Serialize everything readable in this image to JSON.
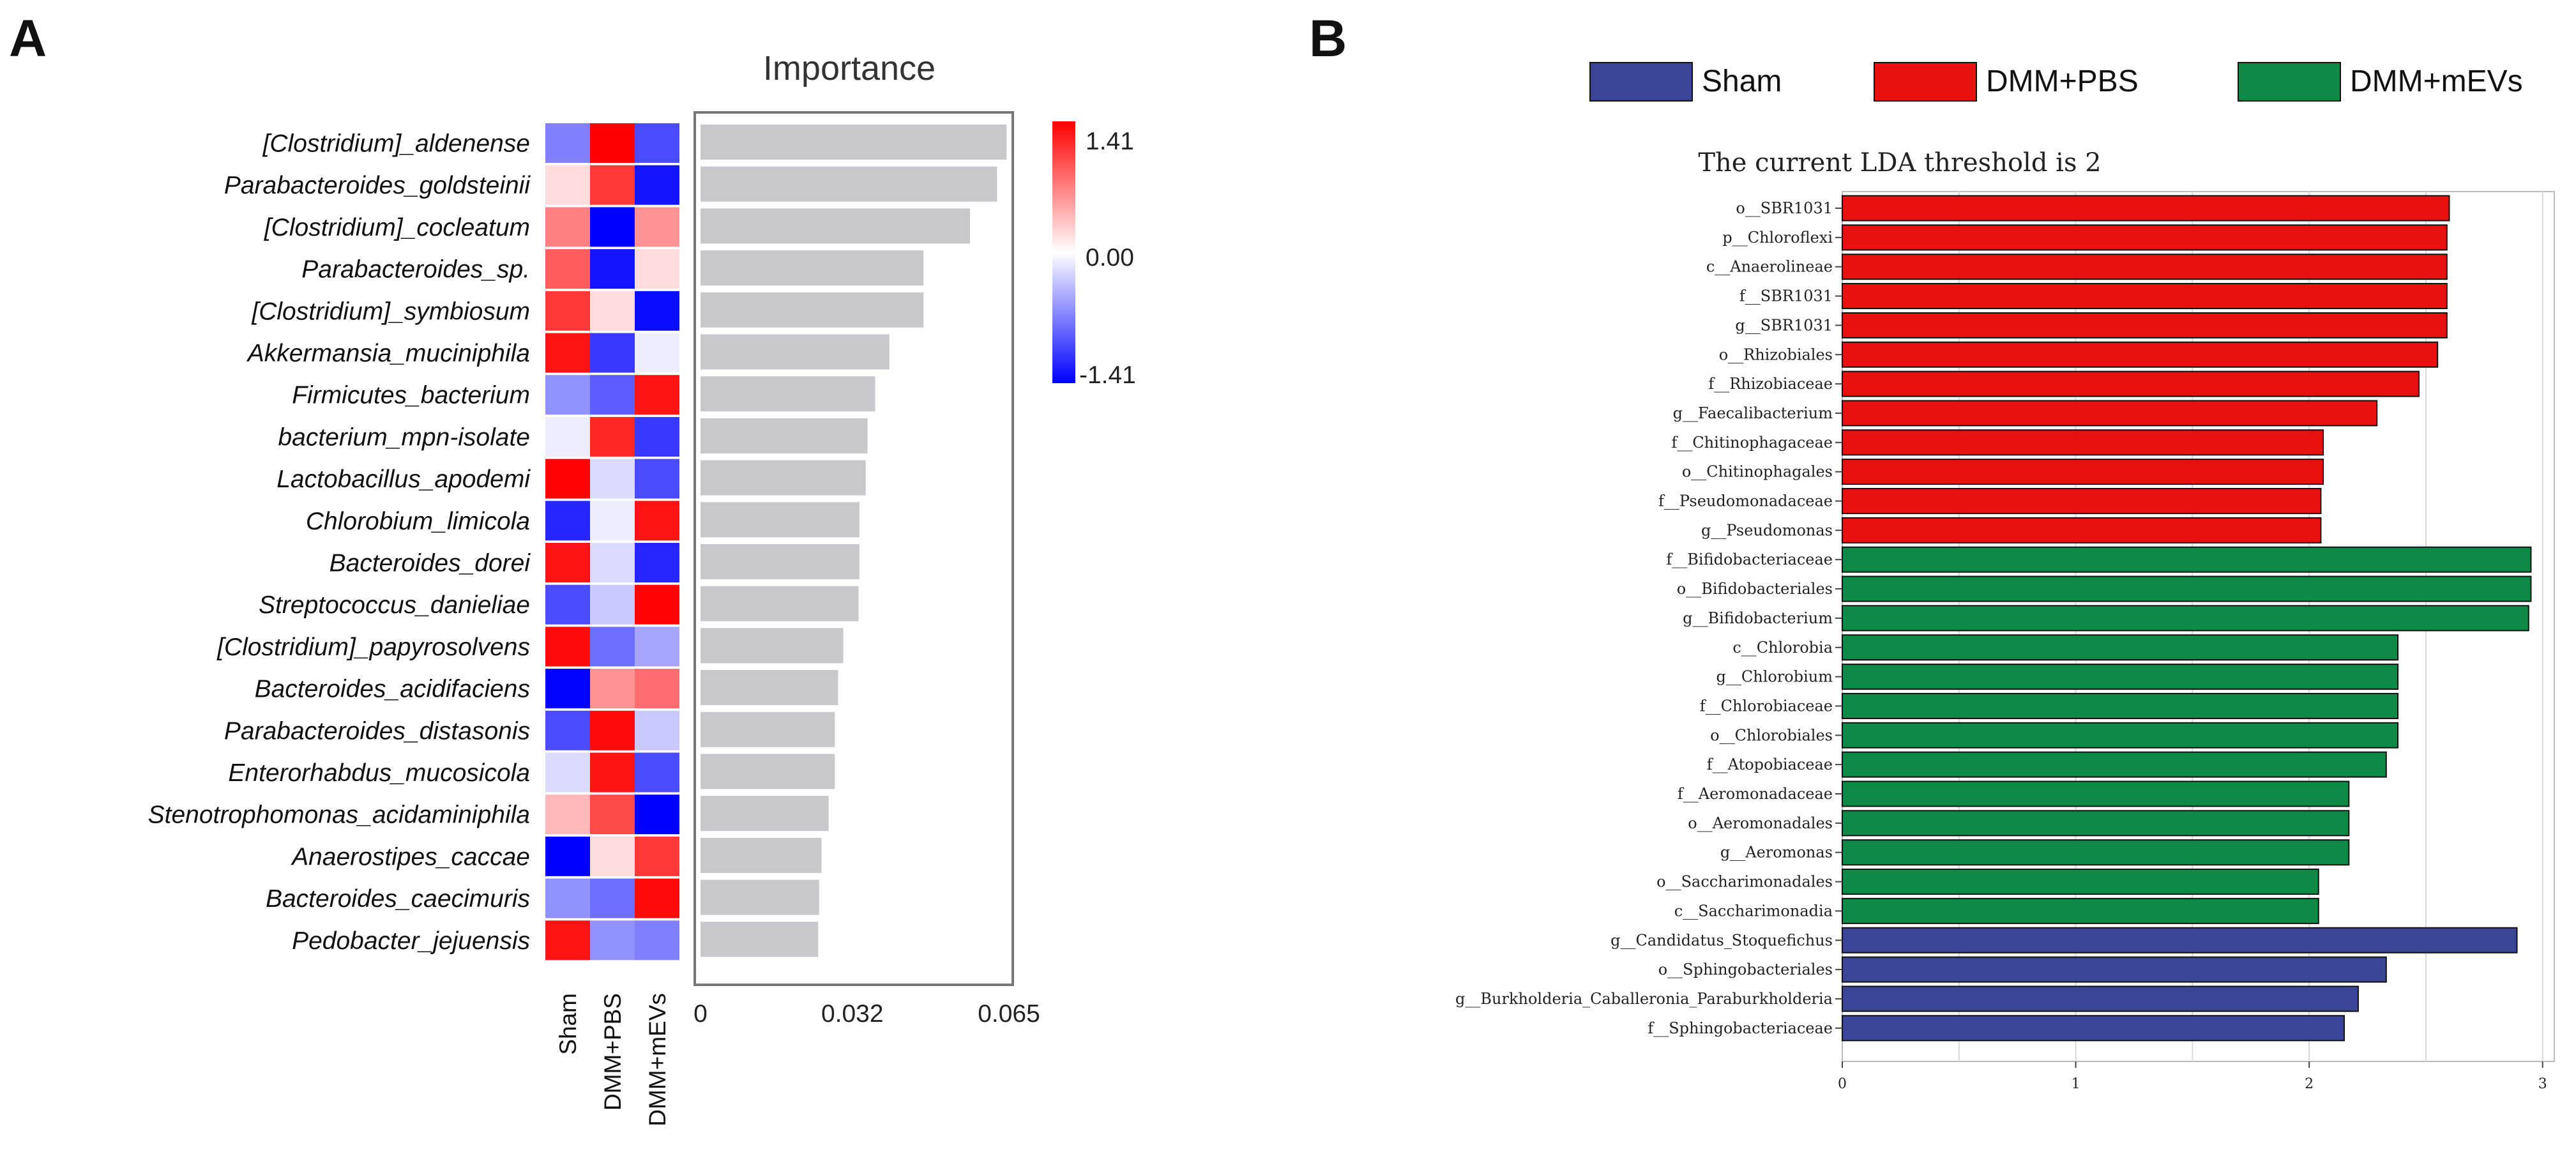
{
  "panelA": {
    "letter": "A",
    "importance_title": "Importance",
    "colorbar": {
      "max_label": "1.41",
      "mid_label": "0.00",
      "min_label": "-1.41",
      "max": 1.41,
      "min": -1.41,
      "low_color": "#0000ff",
      "mid_color": "#ffffff",
      "high_color": "#ff0000"
    },
    "groups": [
      "Sham",
      "DMM+PBS",
      "DMM+mEVs"
    ]
  },
  "panelB": {
    "letter": "B",
    "legend": [
      {
        "label": "Sham",
        "color": "#3b4596"
      },
      {
        "label": "DMM+PBS",
        "color": "#e8110f"
      },
      {
        "label": "DMM+mEVs",
        "color": "#0e8a47"
      }
    ],
    "title": "The current LDA threshold is 2"
  },
  "chart_data": [
    {
      "type": "bar",
      "orientation": "horizontal",
      "title": "Importance",
      "xlim": [
        0,
        0.065
      ],
      "xticks": [
        "0",
        "0.032",
        "0.065"
      ],
      "bar_color": "#c8c8cc",
      "categories": [
        "[Clostridium]_aldenense",
        "Parabacteroides_goldsteinii",
        "[Clostridium]_cocleatum",
        "Parabacteroides_sp.",
        "[Clostridium]_symbiosum",
        "Akkermansia_muciniphila",
        "Firmicutes_bacterium",
        "bacterium_mpn-isolate",
        "Lactobacillus_apodemi",
        "Chlorobium_limicola",
        "Bacteroides_dorei",
        "Streptococcus_danieliae",
        "[Clostridium]_papyrosolvens",
        "Bacteroides_acidifaciens",
        "Parabacteroides_distasonis",
        "Enterorhabdus_mucosicola",
        "Stenotrophomonas_acidaminiphila",
        "Anaerostipes_caccae",
        "Bacteroides_caecimuris",
        "Pedobacter_jejuensis"
      ],
      "values": [
        0.0645,
        0.0625,
        0.0568,
        0.047,
        0.047,
        0.0398,
        0.0368,
        0.0352,
        0.0348,
        0.0335,
        0.0335,
        0.0333,
        0.0301,
        0.029,
        0.0283,
        0.0283,
        0.027,
        0.0255,
        0.025,
        0.0248
      ]
    },
    {
      "type": "heatmap",
      "columns": [
        "Sham",
        "DMM+PBS",
        "DMM+mEVs"
      ],
      "range": [
        -1.41,
        1.41
      ],
      "rows": [
        [
          -0.7,
          1.41,
          -1.0
        ],
        [
          0.2,
          1.1,
          -1.3
        ],
        [
          0.7,
          -1.41,
          0.6
        ],
        [
          0.9,
          -1.3,
          0.2
        ],
        [
          1.1,
          0.2,
          -1.35
        ],
        [
          1.3,
          -1.1,
          -0.1
        ],
        [
          -0.6,
          -0.9,
          1.3
        ],
        [
          -0.1,
          1.2,
          -1.1
        ],
        [
          1.4,
          -0.2,
          -1.0
        ],
        [
          -1.2,
          -0.1,
          1.3
        ],
        [
          1.3,
          -0.2,
          -1.2
        ],
        [
          -1.0,
          -0.3,
          1.4
        ],
        [
          1.35,
          -0.8,
          -0.5
        ],
        [
          -1.4,
          0.6,
          0.8
        ],
        [
          -1.0,
          1.35,
          -0.3
        ],
        [
          -0.2,
          1.3,
          -1.0
        ],
        [
          0.4,
          1.0,
          -1.41
        ],
        [
          -1.41,
          0.2,
          1.1
        ],
        [
          -0.6,
          -0.8,
          1.35
        ],
        [
          1.3,
          -0.6,
          -0.7
        ]
      ]
    },
    {
      "type": "bar",
      "orientation": "horizontal",
      "title": "The current LDA threshold is 2",
      "xlim": [
        0,
        3.05
      ],
      "xticks": [
        "0",
        "1",
        "2",
        "3"
      ],
      "series": [
        {
          "name": "DMM+PBS",
          "color": "#e8110f",
          "categories": [
            "o__SBR1031",
            "p__Chloroflexi",
            "c__Anaerolineae",
            "f__SBR1031",
            "g__SBR1031",
            "o__Rhizobiales",
            "f__Rhizobiaceae",
            "g__Faecalibacterium",
            "f__Chitinophagaceae",
            "o__Chitinophagales",
            "f__Pseudomonadaceae",
            "g__Pseudomonas"
          ],
          "values": [
            2.6,
            2.59,
            2.59,
            2.59,
            2.59,
            2.55,
            2.47,
            2.29,
            2.06,
            2.06,
            2.05,
            2.05
          ]
        },
        {
          "name": "DMM+mEVs",
          "color": "#0e8a47",
          "categories": [
            "f__Bifidobacteriaceae",
            "o__Bifidobacteriales",
            "g__Bifidobacterium",
            "c__Chlorobia",
            "g__Chlorobium",
            "f__Chlorobiaceae",
            "o__Chlorobiales",
            "f__Atopobiaceae",
            "f__Aeromonadaceae",
            "o__Aeromonadales",
            "g__Aeromonas",
            "o__Saccharimonadales",
            "c__Saccharimonadia"
          ],
          "values": [
            2.95,
            2.95,
            2.94,
            2.38,
            2.38,
            2.38,
            2.38,
            2.33,
            2.17,
            2.17,
            2.17,
            2.04,
            2.04
          ]
        },
        {
          "name": "Sham",
          "color": "#3b4596",
          "categories": [
            "g__Candidatus_Stoquefichus",
            "o__Sphingobacteriales",
            "g__Burkholderia_Caballeronia_Paraburkholderia",
            "f__Sphingobacteriaceae"
          ],
          "values": [
            2.89,
            2.33,
            2.21,
            2.15
          ]
        }
      ]
    }
  ]
}
